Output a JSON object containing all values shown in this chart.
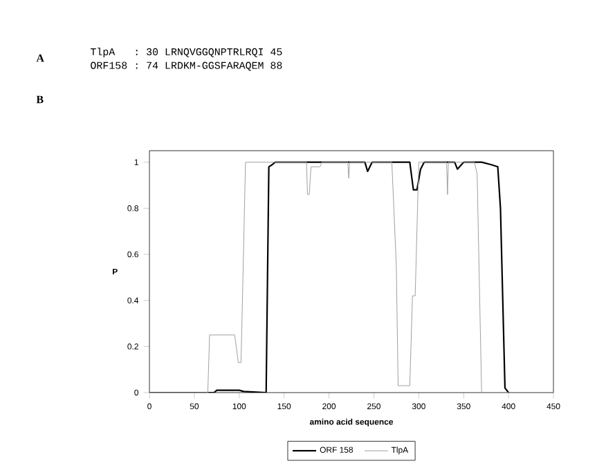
{
  "chart_data": {
    "type": "line",
    "xlabel": "amino acid sequence",
    "ylabel": "P",
    "annotations": [
      "A",
      "TlpA   : 30 LRNQVGGQNPTRLRQI 45",
      "ORF158 : 74 LRDKM-GGSFARAQEM 88",
      "B"
    ],
    "xlim": [
      0,
      450
    ],
    "xticks": [
      0,
      50,
      100,
      150,
      200,
      250,
      300,
      350,
      400,
      450
    ],
    "ylim": [
      0,
      1.05
    ],
    "yticks": [
      0,
      0.2,
      0.4,
      0.6,
      0.8,
      1
    ],
    "legend": "bottom",
    "grid": false,
    "marker": "none",
    "line_style": "solid",
    "series": [
      {
        "name": "ORF 158",
        "color": "#000000",
        "x": [
          0,
          72,
          75,
          100,
          105,
          130,
          133,
          137,
          140,
          240,
          243,
          248,
          290,
          294,
          298,
          302,
          306,
          340,
          343,
          350,
          370,
          380,
          388,
          391,
          396,
          400
        ],
        "values": [
          0,
          0,
          0.01,
          0.01,
          0.005,
          0,
          0.98,
          0.99,
          1,
          1,
          0.96,
          1,
          1,
          0.88,
          0.88,
          0.97,
          1,
          1,
          0.97,
          1,
          1,
          0.99,
          0.98,
          0.8,
          0.02,
          0
        ]
      },
      {
        "name": "TlpA",
        "color": "#a0a0a0",
        "x": [
          0,
          65,
          67,
          95,
          99,
          102,
          104,
          107,
          175,
          176,
          178,
          180,
          190,
          192,
          221,
          222,
          223,
          270,
          275,
          277,
          290,
          293,
          296,
          300,
          331,
          332,
          333,
          362,
          365,
          370,
          400
        ],
        "values": [
          0,
          0,
          0.25,
          0.25,
          0.13,
          0.13,
          0.47,
          1,
          1,
          0.86,
          0.86,
          0.98,
          0.98,
          1,
          1,
          0.93,
          1,
          1,
          0.55,
          0.03,
          0.03,
          0.42,
          0.42,
          1,
          1,
          0.86,
          1,
          1,
          0.95,
          0,
          0
        ]
      }
    ]
  }
}
